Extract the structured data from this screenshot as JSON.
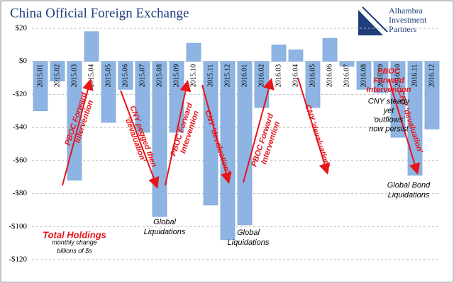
{
  "chart_data": {
    "type": "bar",
    "title": "China Official Foreign Exchange",
    "logo": [
      "Alhambra",
      "Investment",
      "Partners"
    ],
    "categories": [
      "2015.01",
      "2015.02",
      "2015.03",
      "2015.04",
      "2015.05",
      "2015.06",
      "2015.07",
      "2015.08",
      "2015.09",
      "2015.10",
      "2015.11",
      "2015.12",
      "2016.01",
      "2016.02",
      "2016.03",
      "2016.04",
      "2016.05",
      "2016.06",
      "2016.07",
      "2016.08",
      "2016.09",
      "2016.10",
      "2016.11",
      "2016.12"
    ],
    "values": [
      -30,
      -12,
      -72,
      18,
      -37,
      -17,
      -43,
      -94,
      -43,
      11,
      -87,
      -108,
      -99,
      -28,
      10,
      7,
      -28,
      14,
      -3,
      -17,
      -19,
      -46,
      -69,
      -41
    ],
    "color": "#8db4e2",
    "ylim": [
      -120,
      20
    ],
    "yticks": [
      {
        "value": -120,
        "label": "-$120"
      },
      {
        "value": -100,
        "label": "-$100"
      },
      {
        "value": -80,
        "label": "-$80"
      },
      {
        "value": -60,
        "label": "-$60"
      },
      {
        "value": -40,
        "label": "-$40"
      },
      {
        "value": -20,
        "label": "-$20"
      },
      {
        "value": 0,
        "label": "$0"
      },
      {
        "value": 20,
        "label": "$20"
      }
    ],
    "grid": true,
    "annotations": [
      {
        "lines": [
          "PBOC Forward",
          "Intervention"
        ],
        "color": "red"
      },
      {
        "lines": [
          "CNY pegged then",
          "'devaluation'"
        ],
        "color": "red"
      },
      {
        "lines": [
          "PBOC Forward",
          "Intervention"
        ],
        "color": "red"
      },
      {
        "lines": [
          "CNY 'devaluation'"
        ],
        "color": "red"
      },
      {
        "lines": [
          "PBOC Forward",
          "Intervention"
        ],
        "color": "red"
      },
      {
        "lines": [
          "CNY 'devaluation'"
        ],
        "color": "red"
      },
      {
        "lines": [
          "PBOC",
          "Forward",
          "Intervention"
        ],
        "color": "red"
      },
      {
        "lines": [
          "CNY 'devaluation'"
        ],
        "color": "red"
      },
      {
        "lines": [
          "CNY steady",
          "yet",
          "'outflows'",
          "now persist"
        ],
        "color": "black"
      },
      {
        "lines": [
          "Global",
          "Liquidations"
        ],
        "color": "black"
      },
      {
        "lines": [
          "Global",
          "Liquidations"
        ],
        "color": "black"
      },
      {
        "lines": [
          "Global Bond",
          "Liquidations"
        ],
        "color": "black"
      },
      {
        "lines": [
          "Total Holdings"
        ],
        "color": "red"
      },
      {
        "lines": [
          "monthly change",
          "billions of $s"
        ],
        "color": "black"
      }
    ]
  }
}
